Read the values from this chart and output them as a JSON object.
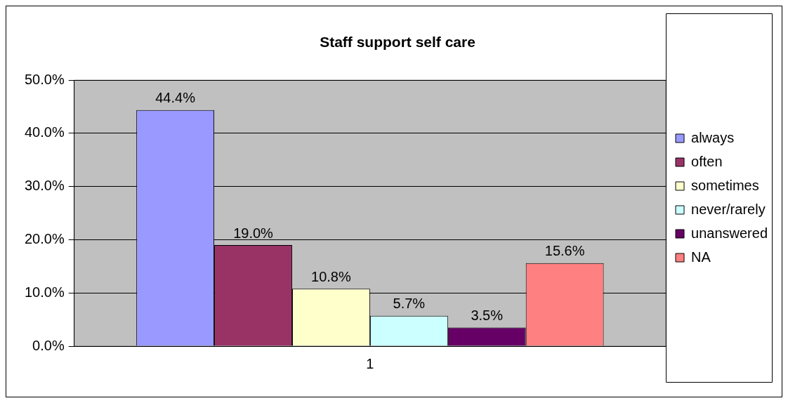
{
  "chart_data": {
    "type": "bar",
    "title": "Staff support self care",
    "categories": [
      "1"
    ],
    "series": [
      {
        "name": "always",
        "color": "#9999ff",
        "values": [
          44.4
        ],
        "value_labels": [
          "44.4%"
        ]
      },
      {
        "name": "often",
        "color": "#993366",
        "values": [
          19.0
        ],
        "value_labels": [
          "19.0%"
        ]
      },
      {
        "name": "sometimes",
        "color": "#ffffcc",
        "values": [
          10.8
        ],
        "value_labels": [
          "10.8%"
        ]
      },
      {
        "name": "never/rarely",
        "color": "#ccffff",
        "values": [
          5.7
        ],
        "value_labels": [
          "5.7%"
        ]
      },
      {
        "name": "unanswered",
        "color": "#660066",
        "values": [
          3.5
        ],
        "value_labels": [
          "3.5%"
        ]
      },
      {
        "name": "NA",
        "color": "#ff8080",
        "values": [
          15.6
        ],
        "value_labels": [
          "15.6%"
        ]
      }
    ],
    "ylim": [
      0,
      50
    ],
    "yticks": [
      {
        "value": 0,
        "label": "0.0%"
      },
      {
        "value": 10,
        "label": "10.0%"
      },
      {
        "value": 20,
        "label": "20.0%"
      },
      {
        "value": 30,
        "label": "30.0%"
      },
      {
        "value": 40,
        "label": "40.0%"
      },
      {
        "value": 50,
        "label": "50.0%"
      }
    ],
    "grid": "y",
    "legend": "right"
  }
}
